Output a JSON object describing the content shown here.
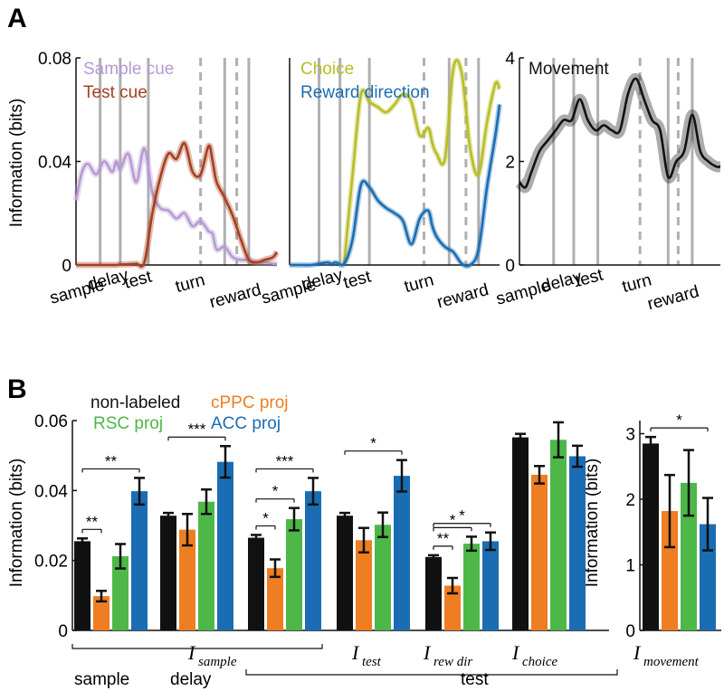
{
  "colors": {
    "sample_cue": "#b79ad3",
    "test_cue": "#a5411f",
    "choice": "#b8bd28",
    "reward_direction": "#1a6db3",
    "movement": "#111111",
    "non_labeled": "#111111",
    "cppc": "#ef7d22",
    "rsc": "#4db848",
    "acc": "#1a6db3",
    "event_line": "#b0b0b0"
  },
  "panel_labels": {
    "a": "A",
    "b": "B"
  },
  "panelA": {
    "ylabel": "Information (bits)",
    "event_labels": [
      "sample",
      "delay",
      "test",
      "turn",
      "reward"
    ]
  },
  "panelB": {
    "legend": {
      "non_labeled": "non-labeled",
      "cppc": "cPPC proj",
      "rsc": "RSC proj",
      "acc": "ACC proj"
    },
    "ylabel_left": "Information (bits)",
    "ylabel_right": "Information (bits)",
    "group_labels": {
      "i_sample": "I",
      "i_sample_sub": "sample",
      "i_test": "I",
      "i_test_sub": "test",
      "i_rew": "I",
      "i_rew_sub": "rew dir",
      "i_choice": "I",
      "i_choice_sub": "choice",
      "i_movement": "I",
      "i_movement_sub": "movement"
    },
    "epoch_labels": {
      "sample": "sample",
      "delay": "delay",
      "test": "test"
    }
  },
  "chart_data": [
    {
      "type": "line",
      "title": "",
      "ylabel": "Information (bits)",
      "ylim": [
        0,
        0.08
      ],
      "yticks": [
        0,
        0.04,
        0.08
      ],
      "ytick_labels": [
        "0",
        "0.04",
        "0.08"
      ],
      "x": [
        0,
        0.03,
        0.06,
        0.1,
        0.14,
        0.18,
        0.2,
        0.22,
        0.26,
        0.3,
        0.34,
        0.38,
        0.42,
        0.46,
        0.5,
        0.54,
        0.58,
        0.62,
        0.66,
        0.68,
        0.7,
        0.74,
        0.78,
        0.82,
        0.86,
        0.9,
        0.94,
        0.98,
        1.0
      ],
      "events": [
        {
          "x": 0.12,
          "style": "solid"
        },
        {
          "x": 0.22,
          "style": "solid"
        },
        {
          "x": 0.36,
          "style": "solid"
        },
        {
          "x": 0.62,
          "style": "dashed"
        },
        {
          "x": 0.74,
          "style": "solid"
        },
        {
          "x": 0.8,
          "style": "dashed"
        },
        {
          "x": 0.86,
          "style": "solid"
        }
      ],
      "series": [
        {
          "name": "Sample cue",
          "values": [
            0.025,
            0.036,
            0.039,
            0.035,
            0.04,
            0.036,
            0.04,
            0.037,
            0.043,
            0.032,
            0.045,
            0.028,
            0.022,
            0.021,
            0.018,
            0.02,
            0.015,
            0.017,
            0.013,
            0.012,
            0.006,
            0.007,
            0.003,
            0.002,
            0.002,
            0.001,
            0.001,
            0.0005,
            0.0005
          ]
        },
        {
          "name": "Test cue",
          "values": [
            0,
            0,
            0,
            0,
            0,
            0,
            0,
            0.0002,
            0.0003,
            0.0005,
            0.001,
            0.02,
            0.034,
            0.043,
            0.041,
            0.047,
            0.036,
            0.035,
            0.046,
            0.04,
            0.032,
            0.026,
            0.019,
            0.01,
            0.002,
            0.001,
            0.002,
            0.003,
            0.005
          ]
        }
      ]
    },
    {
      "type": "line",
      "title": "",
      "ylim": [
        0,
        0.08
      ],
      "x": [
        0,
        0.03,
        0.06,
        0.1,
        0.14,
        0.18,
        0.2,
        0.22,
        0.26,
        0.3,
        0.34,
        0.38,
        0.42,
        0.46,
        0.5,
        0.54,
        0.58,
        0.62,
        0.66,
        0.68,
        0.7,
        0.74,
        0.78,
        0.82,
        0.86,
        0.9,
        0.94,
        0.98,
        1.0
      ],
      "events": [
        {
          "x": 0.14,
          "style": "solid"
        },
        {
          "x": 0.24,
          "style": "solid"
        },
        {
          "x": 0.38,
          "style": "solid"
        },
        {
          "x": 0.64,
          "style": "dashed"
        },
        {
          "x": 0.76,
          "style": "solid"
        },
        {
          "x": 0.84,
          "style": "dashed"
        },
        {
          "x": 0.9,
          "style": "solid"
        }
      ],
      "series": [
        {
          "name": "Choice",
          "values": [
            null,
            null,
            null,
            null,
            null,
            null,
            null,
            null,
            0.0005,
            0.035,
            0.066,
            0.063,
            0.061,
            0.059,
            0.062,
            0.066,
            0.063,
            0.05,
            0.053,
            0.047,
            0.043,
            0.041,
            0.076,
            0.074,
            0.045,
            0.035,
            0.055,
            0.07,
            0.068
          ]
        },
        {
          "name": "Reward direction",
          "values": [
            0,
            0,
            0,
            0,
            0.0005,
            0.001,
            0.0005,
            0.001,
            0.0005,
            0.01,
            0.031,
            0.03,
            0.025,
            0.022,
            0.02,
            0.017,
            0.008,
            0.018,
            0.021,
            0.015,
            0.011,
            0.007,
            0.005,
            0.0005,
            0,
            0.006,
            0.03,
            0.05,
            0.062
          ]
        }
      ]
    },
    {
      "type": "line",
      "title": "",
      "ylim": [
        0,
        4
      ],
      "yticks": [
        0,
        2,
        4
      ],
      "ytick_labels": [
        "0",
        "2",
        "4"
      ],
      "x": [
        0,
        0.03,
        0.06,
        0.1,
        0.14,
        0.18,
        0.22,
        0.26,
        0.3,
        0.34,
        0.38,
        0.42,
        0.46,
        0.5,
        0.54,
        0.58,
        0.62,
        0.66,
        0.7,
        0.74,
        0.78,
        0.82,
        0.86,
        0.9,
        0.94,
        0.98,
        1.0
      ],
      "events": [
        {
          "x": 0.17,
          "style": "solid"
        },
        {
          "x": 0.27,
          "style": "solid"
        },
        {
          "x": 0.39,
          "style": "solid"
        },
        {
          "x": 0.6,
          "style": "dashed"
        },
        {
          "x": 0.74,
          "style": "solid"
        },
        {
          "x": 0.79,
          "style": "dashed"
        },
        {
          "x": 0.86,
          "style": "solid"
        }
      ],
      "series": [
        {
          "name": "Movement",
          "values": [
            1.6,
            1.5,
            1.8,
            2.2,
            2.4,
            2.6,
            2.8,
            2.8,
            3.2,
            2.8,
            2.6,
            2.7,
            2.6,
            2.6,
            3.3,
            3.6,
            3.2,
            2.8,
            2.6,
            1.7,
            2.0,
            2.2,
            2.9,
            2.2,
            2.0,
            1.9,
            1.9
          ]
        }
      ]
    },
    {
      "type": "bar",
      "ylim": [
        0,
        0.06
      ],
      "yticks": [
        0,
        0.02,
        0.04,
        0.06
      ],
      "ytick_labels": [
        "0",
        "0.02",
        "0.04",
        "0.06"
      ],
      "series_names": [
        "non-labeled",
        "cPPC proj",
        "RSC proj",
        "ACC proj"
      ],
      "groups": [
        {
          "name": "sample",
          "values": [
            0.0255,
            0.0098,
            0.0212,
            0.0398
          ],
          "errors": [
            0.0008,
            0.0015,
            0.0035,
            0.0038
          ],
          "sig": [
            {
              "from": 0,
              "to": 1,
              "label": "**"
            },
            {
              "from": 0,
              "to": 3,
              "label": "**"
            }
          ]
        },
        {
          "name": "delay",
          "values": [
            0.0328,
            0.0288,
            0.0368,
            0.0482
          ],
          "errors": [
            0.0008,
            0.0045,
            0.0035,
            0.0045
          ],
          "sig": [
            {
              "from": 0,
              "to": 3,
              "label": "***"
            }
          ]
        },
        {
          "name": "test (sample)",
          "values": [
            0.0265,
            0.0178,
            0.0318,
            0.0398
          ],
          "errors": [
            0.0008,
            0.0025,
            0.0032,
            0.0038
          ],
          "sig": [
            {
              "from": 0,
              "to": 1,
              "label": "*"
            },
            {
              "from": 0,
              "to": 2,
              "label": "*"
            },
            {
              "from": 0,
              "to": 3,
              "label": "***"
            }
          ]
        },
        {
          "name": "test",
          "values": [
            0.0328,
            0.0258,
            0.0302,
            0.0442
          ],
          "errors": [
            0.0008,
            0.0035,
            0.0035,
            0.0045
          ],
          "sig": [
            {
              "from": 0,
              "to": 3,
              "label": "*"
            }
          ]
        },
        {
          "name": "rew dir",
          "values": [
            0.021,
            0.0128,
            0.0248,
            0.0255
          ],
          "errors": [
            0.0005,
            0.0022,
            0.002,
            0.0025
          ],
          "sig": [
            {
              "from": 0,
              "to": 1,
              "label": "**"
            },
            {
              "from": 0,
              "to": 2,
              "label": "*"
            },
            {
              "from": 0,
              "to": 3,
              "label": "*"
            }
          ]
        },
        {
          "name": "choice",
          "values": [
            0.0552,
            0.0445,
            0.0545,
            0.0498
          ],
          "errors": [
            0.001,
            0.0025,
            0.005,
            0.003
          ],
          "sig": []
        }
      ]
    },
    {
      "type": "bar",
      "ylim": [
        0,
        3.2
      ],
      "yticks": [
        0,
        1,
        2,
        3
      ],
      "ytick_labels": [
        "0",
        "1",
        "2",
        "3"
      ],
      "series_names": [
        "non-labeled",
        "cPPC proj",
        "RSC proj",
        "ACC proj"
      ],
      "groups": [
        {
          "name": "movement",
          "values": [
            2.85,
            1.82,
            2.25,
            1.62
          ],
          "errors": [
            0.1,
            0.55,
            0.5,
            0.4
          ],
          "sig": [
            {
              "from": 0,
              "to": 3,
              "label": "*"
            }
          ]
        }
      ]
    }
  ]
}
